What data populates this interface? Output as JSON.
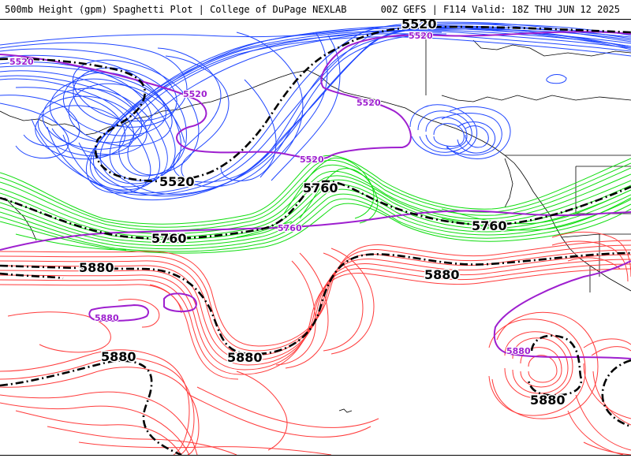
{
  "header": {
    "left_title": "500mb Height (gpm) Spaghetti Plot | College of DuPage NEXLAB",
    "right_title": "00Z GEFS | F114 Valid: 18Z THU JUN 12 2025"
  },
  "contour_levels": {
    "low": "5520",
    "mid": "5760",
    "high": "5880"
  },
  "colors": {
    "level_5520": "#1f46ff",
    "level_5760": "#10dd10",
    "level_5880": "#ff3b3b",
    "ensemble_mean": "#000000",
    "climatology": "#9e1fcf",
    "coastline": "#000000"
  },
  "labels": {
    "mean_5520_a": "5520",
    "mean_5520_b": "5520",
    "mean_5760_a": "5760",
    "mean_5760_b": "5760",
    "mean_5760_c": "5760",
    "mean_5880_a": "5880",
    "mean_5880_b": "5880",
    "mean_5880_c": "5880",
    "mean_5880_d": "5880",
    "mean_5880_e": "5880",
    "clim_5520_a": "5520",
    "clim_5520_b": "5520",
    "clim_5520_c": "5520",
    "clim_5520_d": "5520",
    "clim_5520_e": "5520",
    "clim_5760": "5760",
    "clim_5880_a": "5880",
    "clim_5880_b": "5880"
  }
}
